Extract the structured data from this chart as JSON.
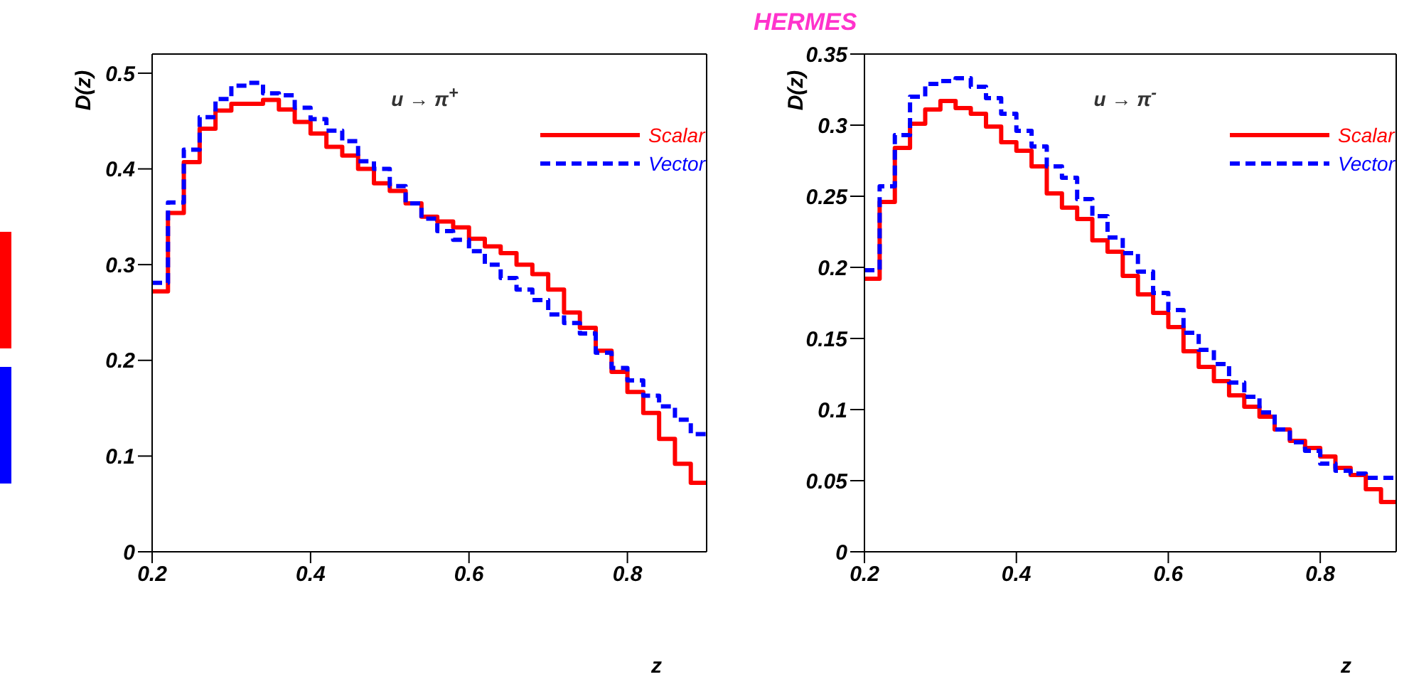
{
  "chart_data": [
    {
      "type": "histogram",
      "xlabel": "z",
      "ylabel": "D(z)",
      "annotations": [
        "u → π$^{+}$"
      ],
      "legend": "top right",
      "xlim": [
        0.2,
        0.9
      ],
      "ylim": [
        0,
        0.52
      ],
      "xticks": [
        0.2,
        0.4,
        0.6,
        0.8
      ],
      "yticks": [
        0,
        0.1,
        0.2,
        0.3,
        0.4,
        0.5
      ],
      "bins": [
        0.2,
        0.22,
        0.24,
        0.26,
        0.28,
        0.3,
        0.32,
        0.34,
        0.36,
        0.38,
        0.4,
        0.42,
        0.44,
        0.46,
        0.48,
        0.5,
        0.52,
        0.54,
        0.56,
        0.58,
        0.6,
        0.62,
        0.64,
        0.66,
        0.68,
        0.7,
        0.72,
        0.74,
        0.76,
        0.78,
        0.8,
        0.82,
        0.84,
        0.86,
        0.88,
        0.9
      ],
      "series": [
        {
          "name": "Scalar",
          "color": "#ff0000",
          "line_style": "solid",
          "values": [
            0.272,
            0.354,
            0.407,
            0.442,
            0.461,
            0.468,
            0.468,
            0.472,
            0.462,
            0.449,
            0.437,
            0.423,
            0.414,
            0.4,
            0.385,
            0.377,
            0.364,
            0.35,
            0.345,
            0.339,
            0.327,
            0.319,
            0.312,
            0.3,
            0.29,
            0.274,
            0.25,
            0.234,
            0.21,
            0.188,
            0.167,
            0.145,
            0.118,
            0.092,
            0.072
          ]
        },
        {
          "name": "Vector",
          "color": "#0000ff",
          "line_style": "dashed",
          "values": [
            0.281,
            0.365,
            0.42,
            0.454,
            0.473,
            0.487,
            0.49,
            0.479,
            0.477,
            0.464,
            0.452,
            0.44,
            0.429,
            0.408,
            0.4,
            0.382,
            0.364,
            0.348,
            0.335,
            0.326,
            0.314,
            0.3,
            0.286,
            0.274,
            0.263,
            0.248,
            0.239,
            0.228,
            0.208,
            0.192,
            0.179,
            0.163,
            0.152,
            0.138,
            0.123
          ]
        }
      ]
    },
    {
      "type": "histogram",
      "title": "HERMES",
      "xlabel": "z",
      "ylabel": "D(z)",
      "annotations": [
        "u → π$^{-}$"
      ],
      "legend": "top right",
      "xlim": [
        0.2,
        0.9
      ],
      "ylim": [
        0,
        0.35
      ],
      "xticks": [
        0.2,
        0.4,
        0.6,
        0.8
      ],
      "yticks": [
        0,
        0.05,
        0.1,
        0.15,
        0.2,
        0.25,
        0.3,
        0.35
      ],
      "bins": [
        0.2,
        0.22,
        0.24,
        0.26,
        0.28,
        0.3,
        0.32,
        0.34,
        0.36,
        0.38,
        0.4,
        0.42,
        0.44,
        0.46,
        0.48,
        0.5,
        0.52,
        0.54,
        0.56,
        0.58,
        0.6,
        0.62,
        0.64,
        0.66,
        0.68,
        0.7,
        0.72,
        0.74,
        0.76,
        0.78,
        0.8,
        0.82,
        0.84,
        0.86,
        0.88,
        0.9
      ],
      "series": [
        {
          "name": "Scalar",
          "color": "#ff0000",
          "line_style": "solid",
          "values": [
            0.192,
            0.246,
            0.284,
            0.301,
            0.311,
            0.317,
            0.312,
            0.308,
            0.299,
            0.288,
            0.282,
            0.271,
            0.252,
            0.242,
            0.234,
            0.219,
            0.211,
            0.194,
            0.181,
            0.168,
            0.158,
            0.141,
            0.13,
            0.12,
            0.11,
            0.102,
            0.095,
            0.086,
            0.078,
            0.073,
            0.067,
            0.059,
            0.054,
            0.044,
            0.035
          ]
        },
        {
          "name": "Vector",
          "color": "#0000ff",
          "line_style": "dashed",
          "values": [
            0.198,
            0.257,
            0.293,
            0.32,
            0.329,
            0.331,
            0.333,
            0.327,
            0.319,
            0.308,
            0.296,
            0.285,
            0.271,
            0.263,
            0.248,
            0.236,
            0.221,
            0.21,
            0.197,
            0.182,
            0.17,
            0.154,
            0.142,
            0.132,
            0.119,
            0.109,
            0.098,
            0.086,
            0.077,
            0.071,
            0.062,
            0.057,
            0.055,
            0.052,
            0.052
          ]
        }
      ]
    }
  ]
}
